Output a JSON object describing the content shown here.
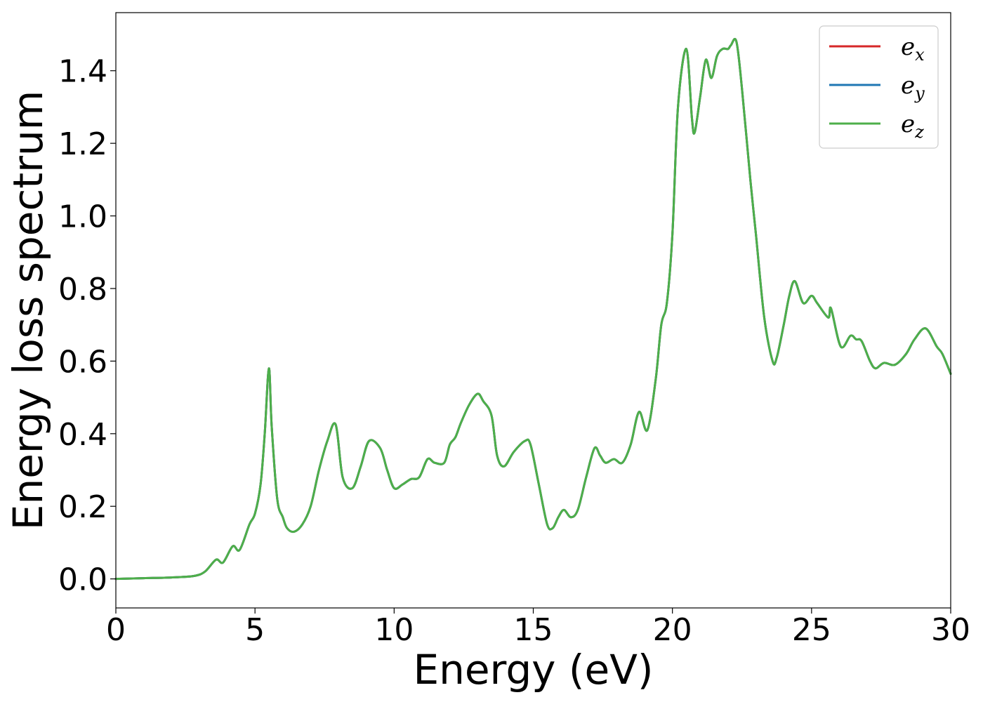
{
  "chart_data": {
    "type": "line",
    "title": "",
    "xlabel": "Energy (eV)",
    "ylabel": "Energy loss spectrum",
    "xlim": [
      0,
      30
    ],
    "ylim": [
      -0.08,
      1.56
    ],
    "xticks": [
      0,
      5,
      10,
      15,
      20,
      25,
      30
    ],
    "xtick_labels": [
      "0",
      "5",
      "10",
      "15",
      "20",
      "25",
      "30"
    ],
    "yticks": [
      0.0,
      0.2,
      0.4,
      0.6,
      0.8,
      1.0,
      1.2,
      1.4
    ],
    "ytick_labels": [
      "0.0",
      "0.2",
      "0.4",
      "0.6",
      "0.8",
      "1.0",
      "1.2",
      "1.4"
    ],
    "grid": false,
    "legend_position": "top-right",
    "x": [
      0,
      1,
      2,
      2.8,
      3.2,
      3.6,
      3.85,
      4.2,
      4.45,
      4.8,
      5.0,
      5.2,
      5.35,
      5.5,
      5.6,
      5.8,
      6.0,
      6.15,
      6.4,
      6.7,
      7.0,
      7.3,
      7.6,
      7.9,
      8.15,
      8.5,
      8.8,
      9.1,
      9.5,
      9.75,
      10.0,
      10.3,
      10.6,
      10.9,
      11.2,
      11.45,
      11.8,
      12.0,
      12.2,
      12.4,
      12.7,
      13.0,
      13.2,
      13.5,
      13.7,
      13.95,
      14.3,
      14.7,
      14.9,
      15.2,
      15.5,
      15.7,
      15.9,
      16.1,
      16.35,
      16.6,
      16.9,
      17.2,
      17.4,
      17.6,
      17.9,
      18.2,
      18.5,
      18.8,
      19.1,
      19.4,
      19.6,
      19.8,
      20.0,
      20.2,
      20.5,
      20.7,
      20.8,
      21.0,
      21.2,
      21.4,
      21.6,
      21.8,
      22.0,
      22.1,
      22.3,
      22.5,
      22.8,
      23.0,
      23.3,
      23.6,
      23.75,
      24.0,
      24.2,
      24.4,
      24.7,
      25.0,
      25.2,
      25.6,
      25.7,
      26.05,
      26.4,
      26.6,
      26.8,
      27.1,
      27.3,
      27.6,
      28.0,
      28.4,
      28.7,
      29.1,
      29.5,
      29.7,
      30.0
    ],
    "series": [
      {
        "name": "e_x",
        "color": "#d62728",
        "values": [
          0.0,
          0.002,
          0.004,
          0.008,
          0.02,
          0.053,
          0.045,
          0.09,
          0.08,
          0.15,
          0.18,
          0.26,
          0.4,
          0.58,
          0.42,
          0.22,
          0.17,
          0.14,
          0.13,
          0.15,
          0.2,
          0.3,
          0.38,
          0.425,
          0.28,
          0.25,
          0.31,
          0.38,
          0.36,
          0.3,
          0.25,
          0.26,
          0.275,
          0.28,
          0.33,
          0.32,
          0.32,
          0.37,
          0.39,
          0.43,
          0.48,
          0.51,
          0.49,
          0.45,
          0.34,
          0.31,
          0.35,
          0.38,
          0.37,
          0.26,
          0.15,
          0.14,
          0.17,
          0.19,
          0.17,
          0.19,
          0.28,
          0.36,
          0.34,
          0.32,
          0.33,
          0.32,
          0.37,
          0.46,
          0.41,
          0.55,
          0.7,
          0.76,
          0.95,
          1.3,
          1.46,
          1.27,
          1.23,
          1.33,
          1.43,
          1.38,
          1.44,
          1.46,
          1.46,
          1.47,
          1.48,
          1.35,
          1.1,
          0.95,
          0.72,
          0.6,
          0.61,
          0.7,
          0.78,
          0.82,
          0.76,
          0.78,
          0.76,
          0.72,
          0.745,
          0.64,
          0.67,
          0.66,
          0.655,
          0.6,
          0.58,
          0.595,
          0.59,
          0.62,
          0.66,
          0.69,
          0.64,
          0.62,
          0.565
        ]
      },
      {
        "name": "e_y",
        "color": "#1f77b4",
        "values": [
          0.0,
          0.002,
          0.004,
          0.008,
          0.02,
          0.053,
          0.045,
          0.09,
          0.08,
          0.15,
          0.18,
          0.26,
          0.4,
          0.58,
          0.42,
          0.22,
          0.17,
          0.14,
          0.13,
          0.15,
          0.2,
          0.3,
          0.38,
          0.425,
          0.28,
          0.25,
          0.31,
          0.38,
          0.36,
          0.3,
          0.25,
          0.26,
          0.275,
          0.28,
          0.33,
          0.32,
          0.32,
          0.37,
          0.39,
          0.43,
          0.48,
          0.51,
          0.49,
          0.45,
          0.34,
          0.31,
          0.35,
          0.38,
          0.37,
          0.26,
          0.15,
          0.14,
          0.17,
          0.19,
          0.17,
          0.19,
          0.28,
          0.36,
          0.34,
          0.32,
          0.33,
          0.32,
          0.37,
          0.46,
          0.41,
          0.55,
          0.7,
          0.76,
          0.95,
          1.3,
          1.46,
          1.27,
          1.23,
          1.33,
          1.43,
          1.38,
          1.44,
          1.46,
          1.46,
          1.47,
          1.48,
          1.35,
          1.1,
          0.95,
          0.72,
          0.6,
          0.61,
          0.7,
          0.78,
          0.82,
          0.76,
          0.78,
          0.76,
          0.72,
          0.745,
          0.64,
          0.67,
          0.66,
          0.655,
          0.6,
          0.58,
          0.595,
          0.59,
          0.62,
          0.66,
          0.69,
          0.64,
          0.62,
          0.565
        ]
      },
      {
        "name": "e_z",
        "color": "#4daf4a",
        "values": [
          0.0,
          0.002,
          0.004,
          0.008,
          0.02,
          0.053,
          0.045,
          0.09,
          0.08,
          0.15,
          0.18,
          0.26,
          0.4,
          0.58,
          0.42,
          0.22,
          0.17,
          0.14,
          0.13,
          0.15,
          0.2,
          0.3,
          0.38,
          0.425,
          0.28,
          0.25,
          0.31,
          0.38,
          0.36,
          0.3,
          0.25,
          0.26,
          0.275,
          0.28,
          0.33,
          0.32,
          0.32,
          0.37,
          0.39,
          0.43,
          0.48,
          0.51,
          0.49,
          0.45,
          0.34,
          0.31,
          0.35,
          0.38,
          0.37,
          0.26,
          0.15,
          0.14,
          0.17,
          0.19,
          0.17,
          0.19,
          0.28,
          0.36,
          0.34,
          0.32,
          0.33,
          0.32,
          0.37,
          0.46,
          0.41,
          0.55,
          0.7,
          0.76,
          0.95,
          1.3,
          1.46,
          1.27,
          1.23,
          1.33,
          1.43,
          1.38,
          1.44,
          1.46,
          1.46,
          1.47,
          1.48,
          1.35,
          1.1,
          0.95,
          0.72,
          0.6,
          0.61,
          0.7,
          0.78,
          0.82,
          0.76,
          0.78,
          0.76,
          0.72,
          0.745,
          0.64,
          0.67,
          0.66,
          0.655,
          0.6,
          0.58,
          0.595,
          0.59,
          0.62,
          0.66,
          0.69,
          0.64,
          0.62,
          0.565
        ]
      }
    ],
    "legend": [
      {
        "base": "e",
        "sub": "x",
        "color": "#d62728"
      },
      {
        "base": "e",
        "sub": "y",
        "color": "#1f77b4"
      },
      {
        "base": "e",
        "sub": "z",
        "color": "#4daf4a"
      }
    ]
  }
}
